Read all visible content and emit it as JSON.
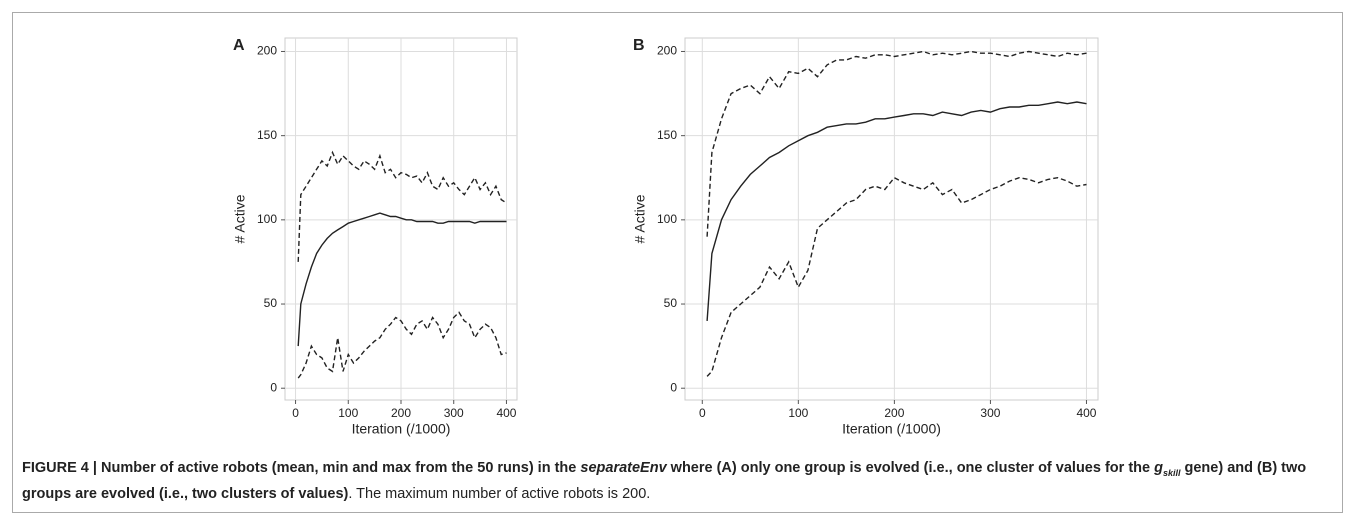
{
  "chart_data": [
    {
      "type": "line",
      "panel": "A",
      "x_label": "Iteration (/1000)",
      "y_label": "# Active",
      "x": [
        5,
        10,
        20,
        30,
        40,
        50,
        60,
        70,
        80,
        90,
        100,
        110,
        120,
        130,
        140,
        150,
        160,
        170,
        180,
        190,
        200,
        210,
        220,
        230,
        240,
        250,
        260,
        270,
        280,
        290,
        300,
        310,
        320,
        330,
        340,
        350,
        360,
        370,
        380,
        390,
        400
      ],
      "series": [
        {
          "color": "#222222",
          "dashed": true,
          "values": [
            75,
            115,
            120,
            125,
            130,
            135,
            132,
            140,
            133,
            138,
            135,
            132,
            130,
            135,
            133,
            130,
            138,
            128,
            130,
            125,
            128,
            127,
            125,
            126,
            122,
            128,
            120,
            118,
            125,
            120,
            122,
            118,
            115,
            120,
            125,
            118,
            122,
            115,
            120,
            112,
            110
          ]
        },
        {
          "color": "#222222",
          "dashed": false,
          "values": [
            25,
            50,
            62,
            72,
            80,
            85,
            89,
            92,
            94,
            96,
            98,
            99,
            100,
            101,
            102,
            103,
            104,
            103,
            102,
            102,
            101,
            100,
            100,
            99,
            99,
            99,
            99,
            98,
            98,
            99,
            99,
            99,
            99,
            99,
            98,
            99,
            99,
            99,
            99,
            99,
            99
          ]
        },
        {
          "color": "#222222",
          "dashed": true,
          "values": [
            6,
            8,
            15,
            25,
            20,
            18,
            12,
            10,
            30,
            10,
            20,
            15,
            18,
            22,
            25,
            28,
            30,
            35,
            38,
            42,
            40,
            35,
            32,
            38,
            40,
            35,
            42,
            38,
            30,
            35,
            42,
            45,
            40,
            38,
            30,
            35,
            38,
            36,
            30,
            20,
            21
          ]
        }
      ],
      "xlim": [
        -20,
        420
      ],
      "ylim": [
        -7,
        208
      ],
      "xticks": [
        0,
        100,
        200,
        300,
        400
      ],
      "yticks": [
        0,
        50,
        100,
        150,
        200
      ],
      "grid": true
    },
    {
      "type": "line",
      "panel": "B",
      "x_label": "Iteration (/1000)",
      "y_label": "# Active",
      "x": [
        5,
        10,
        20,
        30,
        40,
        50,
        60,
        70,
        80,
        90,
        100,
        110,
        120,
        130,
        140,
        150,
        160,
        170,
        180,
        190,
        200,
        210,
        220,
        230,
        240,
        250,
        260,
        270,
        280,
        290,
        300,
        310,
        320,
        330,
        340,
        350,
        360,
        370,
        380,
        390,
        400
      ],
      "series": [
        {
          "color": "#222222",
          "dashed": true,
          "values": [
            90,
            140,
            160,
            175,
            178,
            180,
            175,
            185,
            178,
            188,
            187,
            190,
            185,
            192,
            195,
            195,
            197,
            196,
            198,
            198,
            197,
            198,
            199,
            200,
            198,
            199,
            198,
            199,
            200,
            199,
            199,
            198,
            197,
            199,
            200,
            199,
            198,
            197,
            199,
            198,
            199
          ]
        },
        {
          "color": "#222222",
          "dashed": false,
          "values": [
            40,
            80,
            100,
            112,
            120,
            127,
            132,
            137,
            140,
            144,
            147,
            150,
            152,
            155,
            156,
            157,
            157,
            158,
            160,
            160,
            161,
            162,
            163,
            163,
            162,
            164,
            163,
            162,
            164,
            165,
            164,
            166,
            167,
            167,
            168,
            168,
            169,
            170,
            169,
            170,
            169
          ]
        },
        {
          "color": "#222222",
          "dashed": true,
          "values": [
            7,
            10,
            30,
            45,
            50,
            55,
            60,
            72,
            65,
            75,
            60,
            70,
            95,
            100,
            105,
            110,
            112,
            118,
            120,
            118,
            125,
            122,
            120,
            118,
            122,
            115,
            118,
            110,
            112,
            115,
            118,
            120,
            123,
            125,
            124,
            122,
            124,
            125,
            123,
            120,
            121
          ]
        }
      ],
      "xlim": [
        -18,
        412
      ],
      "ylim": [
        -7,
        208
      ],
      "xticks": [
        0,
        100,
        200,
        300,
        400
      ],
      "yticks": [
        0,
        50,
        100,
        150,
        200
      ],
      "grid": true
    }
  ],
  "caption": {
    "segments": [
      "FIGURE 4 | Number of active robots (mean, min and max from the 50 runs) in the ",
      "separateEnv",
      " where (A) only one group is evolved (i.e., one cluster of values for the ",
      "g",
      "skill",
      " gene) and (B) two groups are evolved (i.e., two clusters of values)",
      ". The maximum number of active robots is 200."
    ]
  }
}
